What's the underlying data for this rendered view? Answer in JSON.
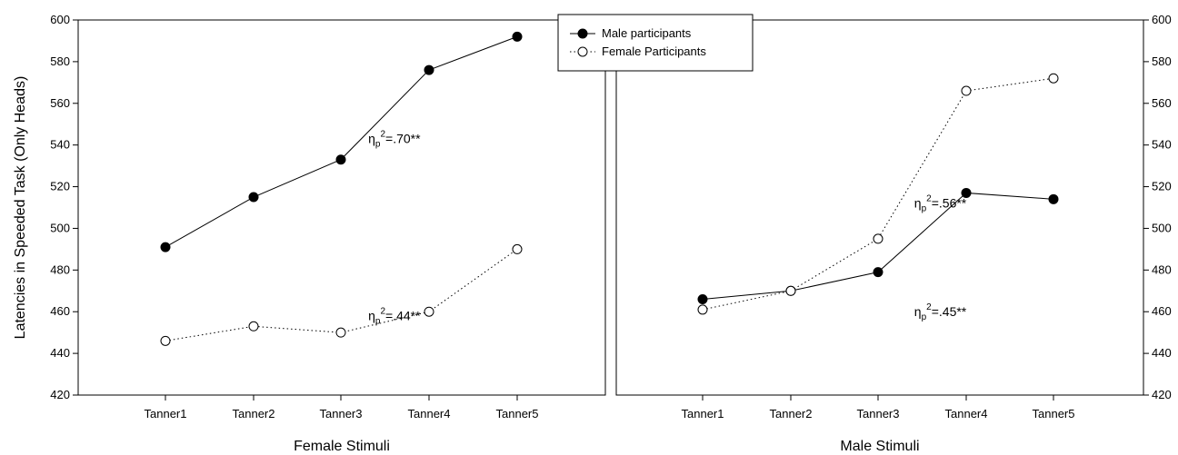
{
  "chart_data": [
    {
      "type": "line",
      "panel": "left",
      "xlabel": "Female Stimuli",
      "ylabel": "Latencies in Speeded Task (Only Heads)",
      "categories": [
        "Tanner1",
        "Tanner2",
        "Tanner3",
        "Tanner4",
        "Tanner5"
      ],
      "ylim": [
        420,
        600
      ],
      "yticks": [
        "420",
        "440",
        "460",
        "480",
        "500",
        "520",
        "540",
        "560",
        "580",
        "600"
      ],
      "series": [
        {
          "name": "Male participants",
          "values": [
            491,
            515,
            533,
            576,
            592
          ]
        },
        {
          "name": "Female Participants",
          "values": [
            446,
            453,
            450,
            460,
            490
          ]
        }
      ],
      "annotations": [
        {
          "base": "η",
          "sub": "p",
          "sup": "2",
          "rest": "=.70**",
          "x": 2.3,
          "y": 541
        },
        {
          "base": "η",
          "sub": "p",
          "sup": "2",
          "rest": "=.44**",
          "x": 2.3,
          "y": 456
        }
      ]
    },
    {
      "type": "line",
      "panel": "right",
      "xlabel": "Male Stimuli",
      "ylabel": "",
      "categories": [
        "Tanner1",
        "Tanner2",
        "Tanner3",
        "Tanner4",
        "Tanner5"
      ],
      "ylim": [
        420,
        600
      ],
      "yticks": [
        "420",
        "440",
        "460",
        "480",
        "500",
        "520",
        "540",
        "560",
        "580",
        "600"
      ],
      "series": [
        {
          "name": "Male participants",
          "values": [
            466,
            470,
            479,
            517,
            514
          ]
        },
        {
          "name": "Female Participants",
          "values": [
            461,
            470,
            495,
            566,
            572
          ]
        }
      ],
      "annotations": [
        {
          "base": "η",
          "sub": "p",
          "sup": "2",
          "rest": "=.56**",
          "x": 2.4,
          "y": 510
        },
        {
          "base": "η",
          "sub": "p",
          "sup": "2",
          "rest": "=.45**",
          "x": 2.4,
          "y": 458
        }
      ]
    }
  ],
  "legend": {
    "placement": "top-center",
    "items": [
      "Male participants",
      "Female Participants"
    ]
  }
}
